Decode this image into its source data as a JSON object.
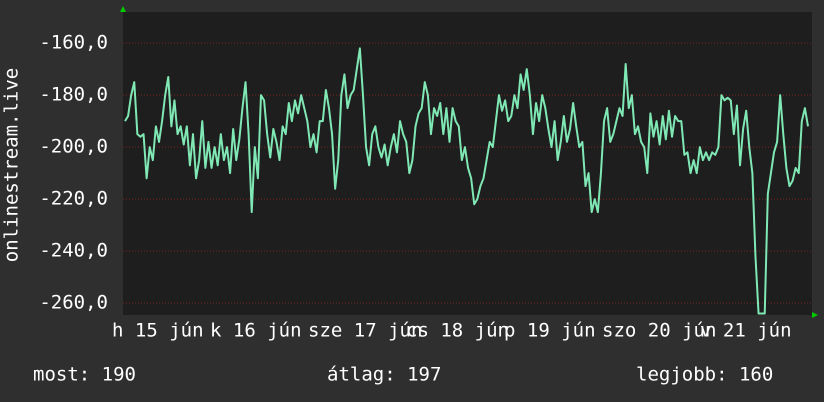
{
  "chart_data": {
    "type": "line",
    "y_label": "onlinestream.live",
    "color": "#7fe8b4",
    "grid": true,
    "ylim": [
      -264.6,
      -148
    ],
    "yticks": [
      {
        "value": -160,
        "label": "-160,0"
      },
      {
        "value": -180,
        "label": "-180,0"
      },
      {
        "value": -200,
        "label": "-200,0"
      },
      {
        "value": -220,
        "label": "-220,0"
      },
      {
        "value": -240,
        "label": "-240,0"
      },
      {
        "value": -260,
        "label": "-260,0"
      }
    ],
    "x_tick_labels": [
      "h 15 jún",
      "k 16 jún",
      "sze 17 jún",
      "cs 18 jún",
      "p 19 jún",
      "szo 20 jún",
      "v 21 jún"
    ],
    "summary": [
      "most: 190",
      "átlag: 197",
      "legjobb: 160"
    ],
    "values": [
      -190,
      -188,
      -180,
      -175,
      -195,
      -196,
      -195,
      -212,
      -200,
      -205,
      -192,
      -198,
      -190,
      -180,
      -173,
      -192,
      -182,
      -195,
      -192,
      -199,
      -192,
      -207,
      -195,
      -212,
      -205,
      -190,
      -208,
      -198,
      -208,
      -200,
      -207,
      -195,
      -205,
      -200,
      -210,
      -193,
      -205,
      -197,
      -185,
      -175,
      -195,
      -225,
      -200,
      -212,
      -180,
      -182,
      -195,
      -204,
      -193,
      -198,
      -205,
      -192,
      -195,
      -183,
      -190,
      -182,
      -187,
      -180,
      -185,
      -190,
      -200,
      -195,
      -202,
      -190,
      -190,
      -178,
      -185,
      -195,
      -216,
      -205,
      -180,
      -172,
      -185,
      -180,
      -178,
      -170,
      -162,
      -180,
      -200,
      -207,
      -195,
      -192,
      -200,
      -204,
      -199,
      -207,
      -200,
      -195,
      -202,
      -190,
      -195,
      -198,
      -210,
      -205,
      -192,
      -187,
      -185,
      -175,
      -180,
      -195,
      -185,
      -188,
      -183,
      -195,
      -185,
      -198,
      -185,
      -190,
      -192,
      -205,
      -200,
      -208,
      -212,
      -222,
      -220,
      -215,
      -212,
      -205,
      -198,
      -200,
      -190,
      -180,
      -186,
      -182,
      -190,
      -188,
      -180,
      -185,
      -172,
      -178,
      -170,
      -180,
      -195,
      -183,
      -190,
      -180,
      -185,
      -193,
      -200,
      -190,
      -205,
      -198,
      -188,
      -198,
      -193,
      -183,
      -192,
      -200,
      -198,
      -215,
      -210,
      -225,
      -220,
      -225,
      -210,
      -190,
      -185,
      -198,
      -195,
      -190,
      -185,
      -188,
      -168,
      -185,
      -180,
      -195,
      -192,
      -198,
      -200,
      -210,
      -187,
      -196,
      -190,
      -199,
      -188,
      -197,
      -186,
      -196,
      -188,
      -190,
      -190,
      -203,
      -202,
      -210,
      -205,
      -210,
      -200,
      -205,
      -202,
      -205,
      -202,
      -203,
      -200,
      -180,
      -182,
      -181,
      -182,
      -195,
      -184,
      -207,
      -193,
      -186,
      -200,
      -210,
      -242,
      -264,
      -264,
      -264,
      -218,
      -210,
      -202,
      -198,
      -180,
      -195,
      -208,
      -215,
      -213,
      -208,
      -210,
      -190,
      -185,
      -192
    ]
  }
}
